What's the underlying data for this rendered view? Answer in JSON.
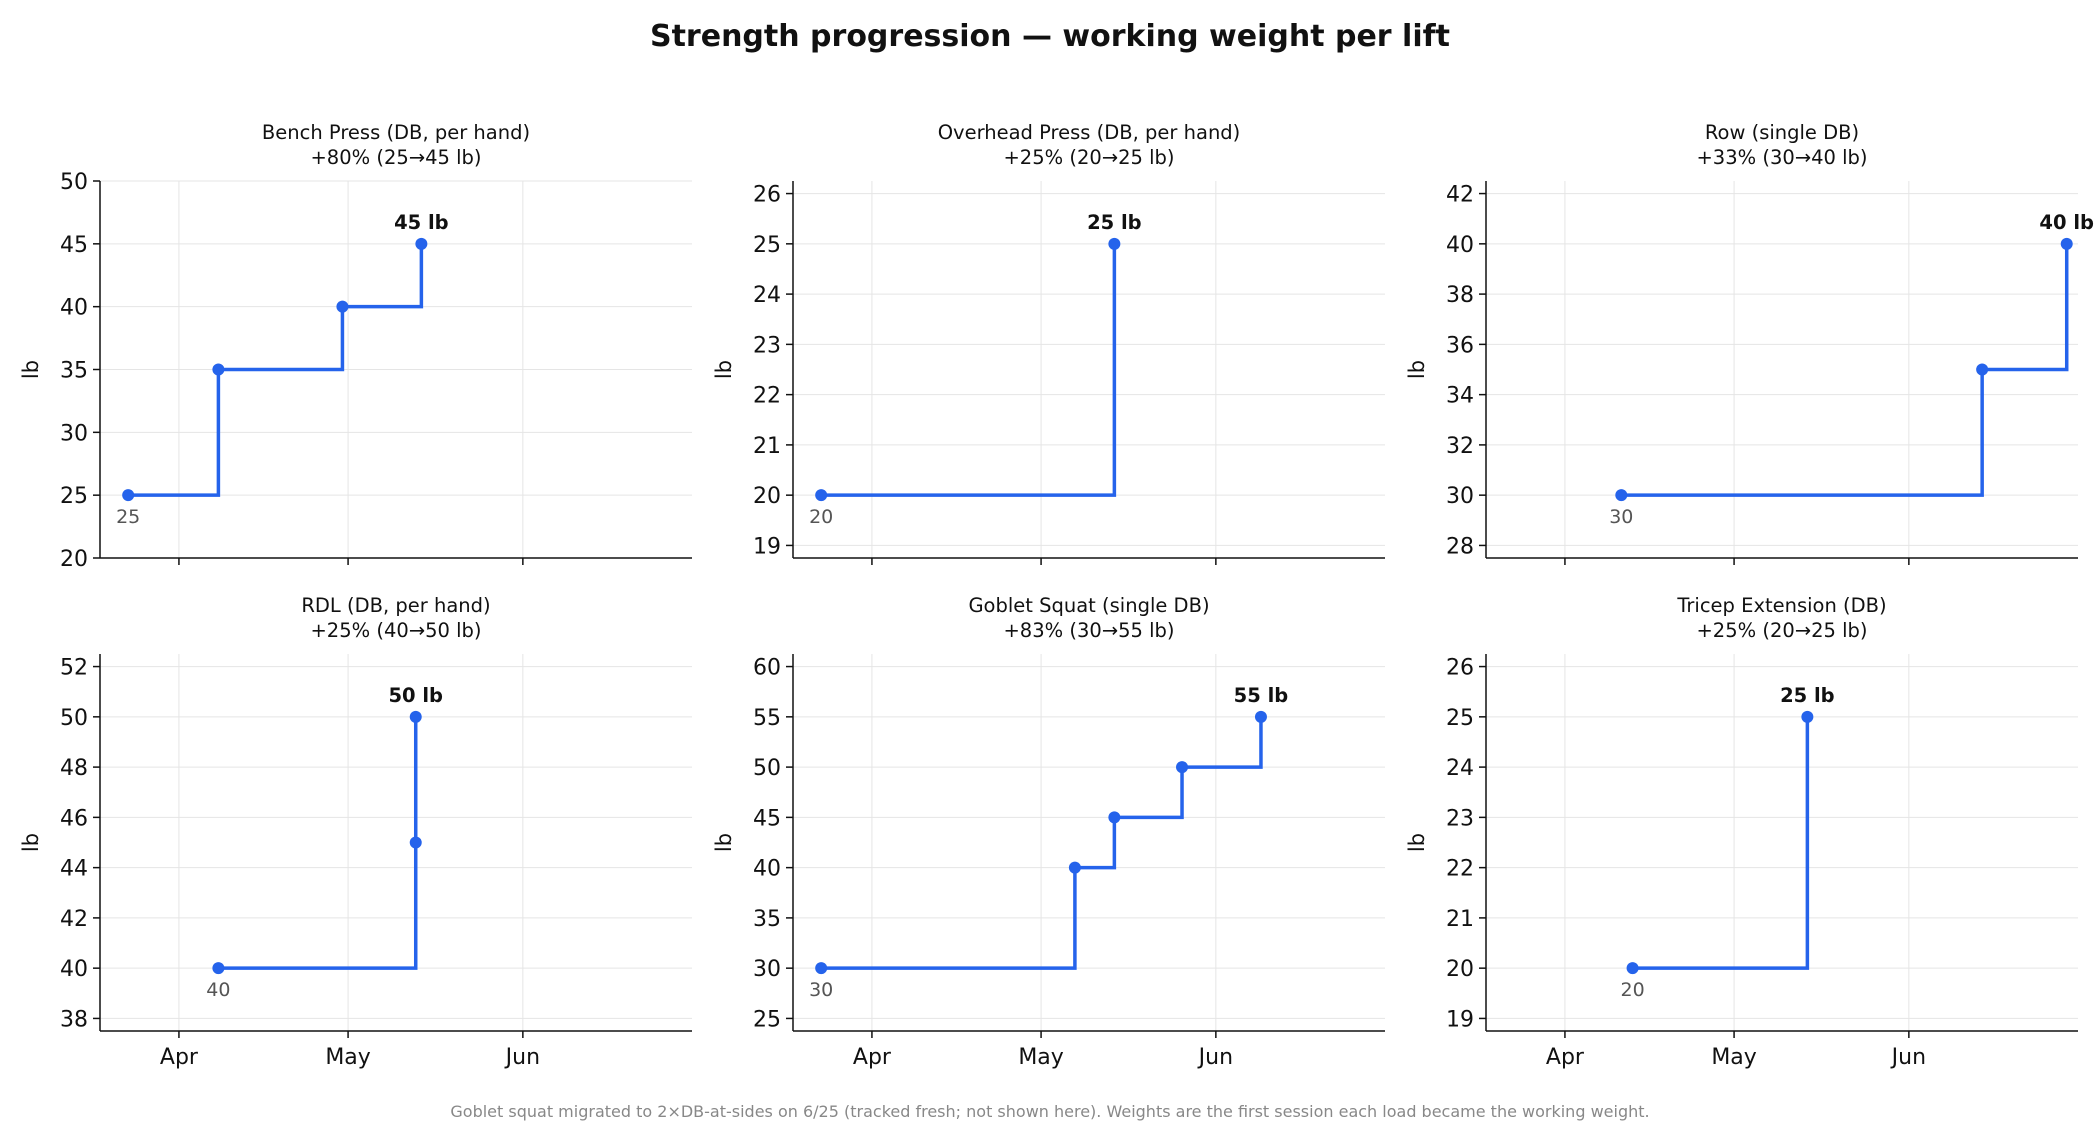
{
  "title": "Strength progression — working weight per lift",
  "footnote": "Goblet squat migrated to 2×DB-at-sides on 6/25 (tracked fresh; not shown here). Weights are the first session each load became the working weight.",
  "colors": {
    "series": "#2563eb",
    "grid": "#e5e5e5",
    "axis": "#111111",
    "start_label": "#555555",
    "footnote": "#888888"
  },
  "chart_data": [
    {
      "type": "line",
      "step": "post",
      "grid": true,
      "title": "Bench Press (DB, per hand)",
      "subtitle": "+80% (25→45 lb)",
      "ylabel": "lb",
      "ylim": [
        20,
        50
      ],
      "yticks": [
        20,
        25,
        30,
        35,
        40,
        45,
        50
      ],
      "xlim": [
        "2025-03-18",
        "2025-07-01"
      ],
      "xticks": [
        "Apr",
        "May",
        "Jun"
      ],
      "x": [
        "2025-03-23",
        "2025-04-08",
        "2025-04-30",
        "2025-05-14"
      ],
      "y": [
        25,
        35,
        40,
        45
      ],
      "start_label": "25",
      "end_label": "45 lb"
    },
    {
      "type": "line",
      "step": "post",
      "grid": true,
      "title": "Overhead Press (DB, per hand)",
      "subtitle": "+25% (20→25 lb)",
      "ylabel": "lb",
      "ylim": [
        18.75,
        26.25
      ],
      "yticks": [
        19,
        20,
        21,
        22,
        23,
        24,
        25,
        26
      ],
      "xlim": [
        "2025-03-18",
        "2025-07-01"
      ],
      "xticks": [
        "Apr",
        "May",
        "Jun"
      ],
      "x": [
        "2025-03-23",
        "2025-05-14"
      ],
      "y": [
        20,
        25
      ],
      "start_label": "20",
      "end_label": "25 lb"
    },
    {
      "type": "line",
      "step": "post",
      "grid": true,
      "title": "Row (single DB)",
      "subtitle": "+33% (30→40 lb)",
      "ylabel": "lb",
      "ylim": [
        27.5,
        42.5
      ],
      "yticks": [
        28,
        30,
        32,
        34,
        36,
        38,
        40,
        42
      ],
      "xlim": [
        "2025-03-18",
        "2025-07-01"
      ],
      "xticks": [
        "Apr",
        "May",
        "Jun"
      ],
      "x": [
        "2025-04-11",
        "2025-06-14",
        "2025-06-29"
      ],
      "y": [
        30,
        35,
        40
      ],
      "start_label": "30",
      "end_label": "40 lb"
    },
    {
      "type": "line",
      "step": "post",
      "grid": true,
      "title": "RDL (DB, per hand)",
      "subtitle": "+25% (40→50 lb)",
      "ylabel": "lb",
      "ylim": [
        37.5,
        52.5
      ],
      "yticks": [
        38,
        40,
        42,
        44,
        46,
        48,
        50,
        52
      ],
      "xlim": [
        "2025-03-18",
        "2025-07-01"
      ],
      "xticks": [
        "Apr",
        "May",
        "Jun"
      ],
      "x": [
        "2025-04-08",
        "2025-05-13",
        "2025-05-13"
      ],
      "y": [
        40,
        45,
        50
      ],
      "start_label": "40",
      "end_label": "50 lb"
    },
    {
      "type": "line",
      "step": "post",
      "grid": true,
      "title": "Goblet Squat (single DB)",
      "subtitle": "+83% (30→55 lb)",
      "ylabel": "lb",
      "ylim": [
        23.75,
        61.25
      ],
      "yticks": [
        25,
        30,
        35,
        40,
        45,
        50,
        55,
        60
      ],
      "xlim": [
        "2025-03-18",
        "2025-07-01"
      ],
      "xticks": [
        "Apr",
        "May",
        "Jun"
      ],
      "x": [
        "2025-03-23",
        "2025-05-07",
        "2025-05-14",
        "2025-05-26",
        "2025-06-09"
      ],
      "y": [
        30,
        40,
        45,
        50,
        55
      ],
      "start_label": "30",
      "end_label": "55 lb"
    },
    {
      "type": "line",
      "step": "post",
      "grid": true,
      "title": "Tricep Extension (DB)",
      "subtitle": "+25% (20→25 lb)",
      "ylabel": "lb",
      "ylim": [
        18.75,
        26.25
      ],
      "yticks": [
        19,
        20,
        21,
        22,
        23,
        24,
        25,
        26
      ],
      "xlim": [
        "2025-03-18",
        "2025-07-01"
      ],
      "xticks": [
        "Apr",
        "May",
        "Jun"
      ],
      "x": [
        "2025-04-13",
        "2025-05-14"
      ],
      "y": [
        20,
        25
      ],
      "start_label": "20",
      "end_label": "25 lb"
    }
  ]
}
